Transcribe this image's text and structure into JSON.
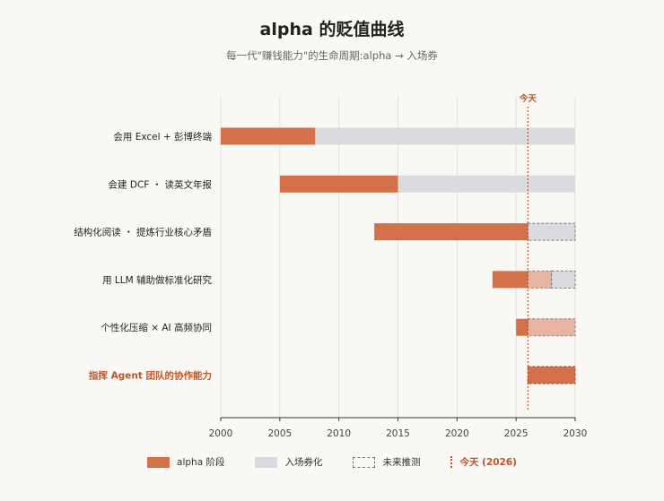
{
  "title": "alpha 的贬值曲线",
  "subtitle": "每一代\"赚钱能力\"的生命周期:alpha → 入场券",
  "colors": {
    "alpha": "#d4714a",
    "entry": "#d9dbe0",
    "alpha_projected": "#e9b49f",
    "entry_projected": "#d9dbe0",
    "today": "#c05528",
    "highlight_label": "#c05528"
  },
  "legend": {
    "alpha": "alpha 阶段",
    "entry": "入场券化",
    "projected": "未来推测",
    "today": "今天 (2026)"
  },
  "chart_data": {
    "type": "bar",
    "orientation": "horizontal",
    "title": "alpha 的贬值曲线",
    "subtitle": "每一代\"赚钱能力\"的生命周期:alpha → 入场券",
    "xlim": [
      2000,
      2030
    ],
    "x_ticks": [
      2000,
      2005,
      2010,
      2015,
      2020,
      2025,
      2030
    ],
    "today": 2026,
    "today_label": "今天",
    "grid": true,
    "legend_position": "bottom",
    "rows": [
      {
        "label": "会用 Excel + 彭博终端",
        "highlight": false,
        "segments": [
          {
            "phase": "alpha",
            "start": 2000,
            "end": 2008,
            "projected": false
          },
          {
            "phase": "entry",
            "start": 2008,
            "end": 2030,
            "projected": false
          }
        ]
      },
      {
        "label": "会建 DCF ・ 读英文年报",
        "highlight": false,
        "segments": [
          {
            "phase": "alpha",
            "start": 2005,
            "end": 2015,
            "projected": false
          },
          {
            "phase": "entry",
            "start": 2015,
            "end": 2030,
            "projected": false
          }
        ]
      },
      {
        "label": "结构化阅读 ・ 提炼行业核心矛盾",
        "highlight": false,
        "segments": [
          {
            "phase": "alpha",
            "start": 2013,
            "end": 2026,
            "projected": false
          },
          {
            "phase": "entry",
            "start": 2026,
            "end": 2030,
            "projected": true
          }
        ]
      },
      {
        "label": "用 LLM 辅助做标准化研究",
        "highlight": false,
        "segments": [
          {
            "phase": "alpha",
            "start": 2023,
            "end": 2026,
            "projected": false
          },
          {
            "phase": "alpha",
            "start": 2026,
            "end": 2028,
            "projected": true
          },
          {
            "phase": "entry",
            "start": 2028,
            "end": 2030,
            "projected": true
          }
        ]
      },
      {
        "label": "个性化压缩 × AI 高频协同",
        "highlight": false,
        "segments": [
          {
            "phase": "alpha",
            "start": 2025,
            "end": 2026,
            "projected": false
          },
          {
            "phase": "alpha",
            "start": 2026,
            "end": 2030,
            "projected": true
          }
        ]
      },
      {
        "label": "指挥 Agent 团队的协作能力",
        "highlight": true,
        "segments": [
          {
            "phase": "alpha",
            "start": 2026,
            "end": 2030,
            "projected": true,
            "strong": true
          }
        ]
      }
    ]
  }
}
